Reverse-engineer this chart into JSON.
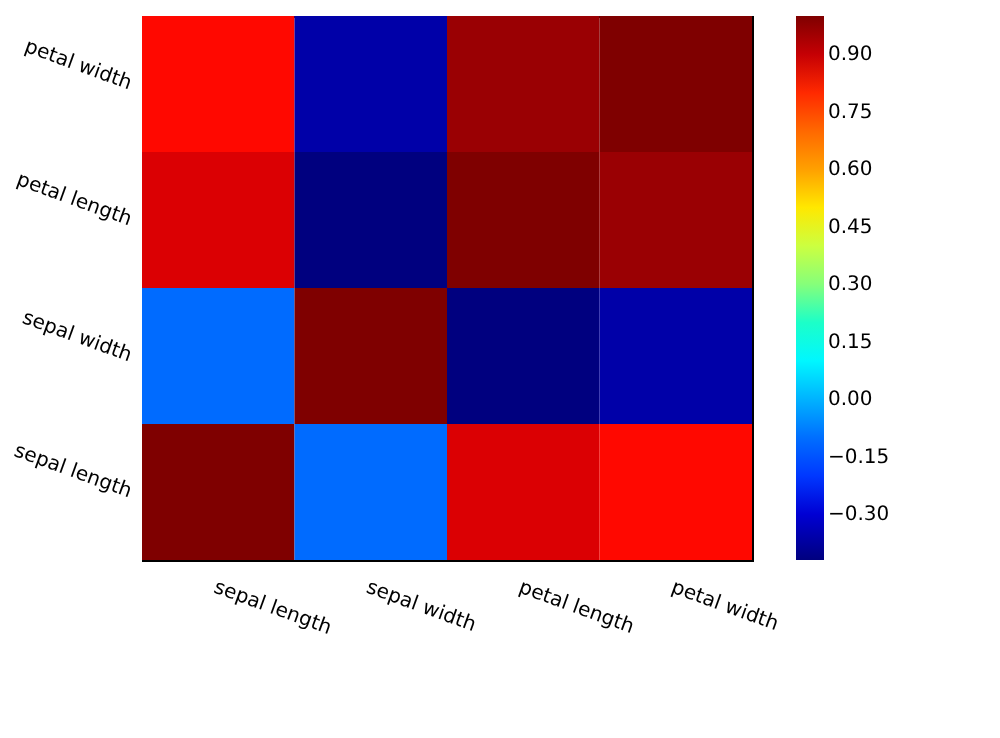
{
  "chart_data": {
    "type": "heatmap",
    "categories": [
      "sepal length",
      "sepal width",
      "petal length",
      "petal width"
    ],
    "y_categories": [
      "petal width",
      "petal length",
      "sepal width",
      "sepal length"
    ],
    "cells": [
      [
        0.82,
        -0.36,
        0.96,
        1.0
      ],
      [
        0.87,
        -0.42,
        1.0,
        0.96
      ],
      [
        -0.11,
        1.0,
        -0.42,
        -0.36
      ],
      [
        1.0,
        -0.11,
        0.87,
        0.82
      ]
    ],
    "clim": [
      -0.42,
      1.0
    ],
    "cticks": [
      {
        "value": -0.3,
        "label": "−0.30"
      },
      {
        "value": -0.15,
        "label": "−0.15"
      },
      {
        "value": 0,
        "label": "0.00"
      },
      {
        "value": 0.15,
        "label": "0.15"
      },
      {
        "value": 0.3,
        "label": "0.30"
      },
      {
        "value": 0.45,
        "label": "0.45"
      },
      {
        "value": 0.6,
        "label": "0.60"
      },
      {
        "value": 0.75,
        "label": "0.75"
      },
      {
        "value": 0.9,
        "label": "0.90"
      }
    ]
  }
}
